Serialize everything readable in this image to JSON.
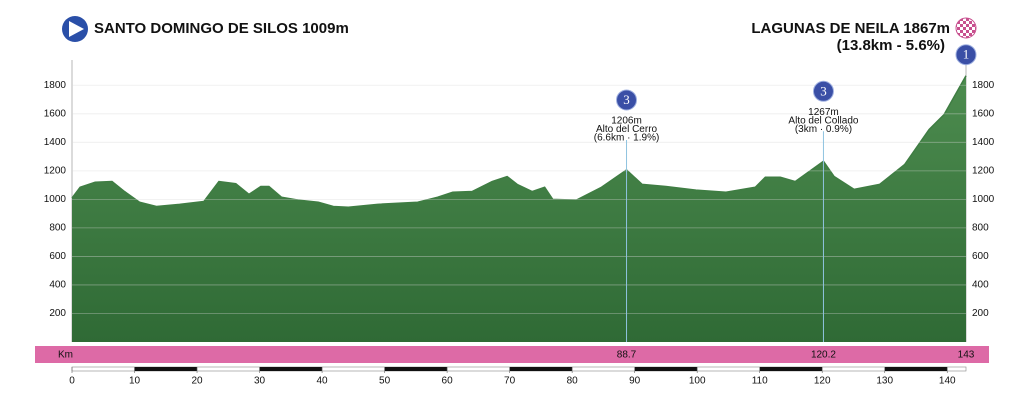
{
  "chart_data": {
    "type": "area",
    "title_start": "SANTO DOMINGO DE SILOS 1009m",
    "title_finish": "LAGUNAS DE NEILA 1867m",
    "subtitle_finish": "(13.8km - 5.6%)",
    "x_axis_label": "Km",
    "x": [
      0,
      1.3,
      3.7,
      6.4,
      8.4,
      10.8,
      13.5,
      17.2,
      21.1,
      23.5,
      26.2,
      28.3,
      30.2,
      31.5,
      33.5,
      36.2,
      39.4,
      41.8,
      44.2,
      48.9,
      55.3,
      58.5,
      60.9,
      64.0,
      67.2,
      69.6,
      71.2,
      73.6,
      75.6,
      76.9,
      80.7,
      84.7,
      88.7,
      91.2,
      95.0,
      99.8,
      104.6,
      109.3,
      110.9,
      113.3,
      115.7,
      120.2,
      121.9,
      125.1,
      129.2,
      133.2,
      137.1,
      139.5,
      143
    ],
    "series": [
      {
        "color": "#3f7d43",
        "values": [
          1009,
          1085,
          1120,
          1125,
          1055,
          980,
          950,
          965,
          985,
          1125,
          1110,
          1035,
          1090,
          1090,
          1015,
          995,
          980,
          950,
          945,
          965,
          980,
          1015,
          1050,
          1055,
          1125,
          1160,
          1105,
          1055,
          1085,
          1000,
          995,
          1085,
          1206,
          1105,
          1090,
          1065,
          1050,
          1085,
          1155,
          1155,
          1125,
          1267,
          1160,
          1070,
          1105,
          1245,
          1490,
          1595,
          1867
        ]
      }
    ],
    "xlim": [
      0,
      143
    ],
    "ylim": [
      0,
      1900
    ],
    "xticks": [
      0,
      10,
      20,
      30,
      40,
      50,
      60,
      70,
      80,
      90,
      100,
      110,
      120,
      130,
      140
    ],
    "yticks": [
      200,
      400,
      600,
      800,
      1000,
      1200,
      1400,
      1600,
      1800
    ],
    "grid": true,
    "km_markers": [
      88.7,
      120.2,
      143
    ],
    "annotations": [
      {
        "x": 88.7,
        "category": "3",
        "lines": [
          "1206m",
          "Alto del Cerro",
          "(6.6km · 1.9%)"
        ]
      },
      {
        "x": 120.2,
        "category": "3",
        "lines": [
          "1267m",
          "Alto del Collado",
          "(3km · 0.9%)"
        ]
      },
      {
        "x": 143,
        "category": "1",
        "lines": []
      }
    ]
  }
}
